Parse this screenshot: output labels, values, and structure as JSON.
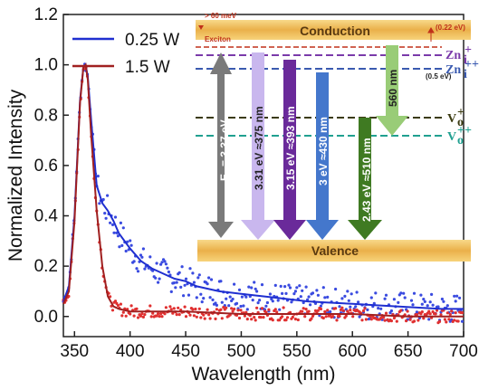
{
  "chart_data": {
    "type": "line",
    "xlabel": "Wavelength (nm)",
    "ylabel": "Normalized Intensity",
    "xlim": [
      340,
      700
    ],
    "ylim": [
      -0.08,
      1.2
    ],
    "x_ticks": [
      "350",
      "400",
      "450",
      "500",
      "550",
      "600",
      "650",
      "700"
    ],
    "y_ticks": [
      "0.0",
      "0.2",
      "0.4",
      "0.6",
      "0.8",
      "1.0",
      "1.2"
    ],
    "legend_position": "top-left",
    "series": [
      {
        "name": "0.25 W",
        "color": "#1f2fd0",
        "marker_color": "#3a4be0",
        "x": [
          340,
          345,
          350,
          355,
          358,
          360,
          362,
          365,
          370,
          375,
          380,
          385,
          390,
          400,
          410,
          420,
          430,
          440,
          450,
          460,
          480,
          500,
          520,
          540,
          560,
          580,
          600,
          620,
          640,
          660,
          680,
          700
        ],
        "y": [
          0.06,
          0.12,
          0.4,
          0.86,
          0.99,
          1.0,
          0.95,
          0.78,
          0.52,
          0.45,
          0.42,
          0.38,
          0.33,
          0.27,
          0.22,
          0.19,
          0.17,
          0.15,
          0.14,
          0.12,
          0.1,
          0.09,
          0.08,
          0.07,
          0.06,
          0.055,
          0.05,
          0.045,
          0.04,
          0.035,
          0.03,
          0.03
        ]
      },
      {
        "name": "1.5 W",
        "color": "#a02020",
        "marker_color": "#e03030",
        "x": [
          340,
          345,
          350,
          355,
          358,
          360,
          362,
          365,
          370,
          375,
          380,
          385,
          390,
          400,
          420,
          450,
          500,
          550,
          600,
          650,
          700
        ],
        "y": [
          0.05,
          0.1,
          0.38,
          0.85,
          0.99,
          1.0,
          0.94,
          0.72,
          0.42,
          0.2,
          0.08,
          0.04,
          0.03,
          0.02,
          0.02,
          0.02,
          0.01,
          0.01,
          0.01,
          0.0,
          0.0
        ]
      }
    ]
  },
  "legend": [
    {
      "label": "0.25 W",
      "color": "#1f2fd0"
    },
    {
      "label": "1.5 W",
      "color": "#a02020"
    }
  ],
  "inset": {
    "conduction_label": "Conduction",
    "valence_label": "Valence",
    "exciton_energy": "> 60 meV",
    "exciton_label": "Exciton",
    "zn_depth": "(0.22 eV)",
    "zn2_depth": "(0.5 eV)",
    "zni1": "Zn",
    "zni2": "Zn",
    "vo1": "V",
    "vo2": "V",
    "arrows": [
      {
        "label": "E",
        "color": "#7a7a7a"
      },
      {
        "label": "3.31 eV  ≈375 nm",
        "color": "#c9b7ee"
      },
      {
        "label": "3.15 eV  ≈393 nm",
        "color": "#6a2a9a"
      },
      {
        "label": "3 eV  ≈430 nm",
        "color": "#4477cc"
      },
      {
        "label": "2.43 eV  ≈510 nm",
        "color": "#3f7a22"
      },
      {
        "label": "560 nm",
        "color": "#99cc77"
      }
    ],
    "eg_label": "E",
    "eg_sub": "g",
    "eg_value": " = 3.37 eV"
  }
}
